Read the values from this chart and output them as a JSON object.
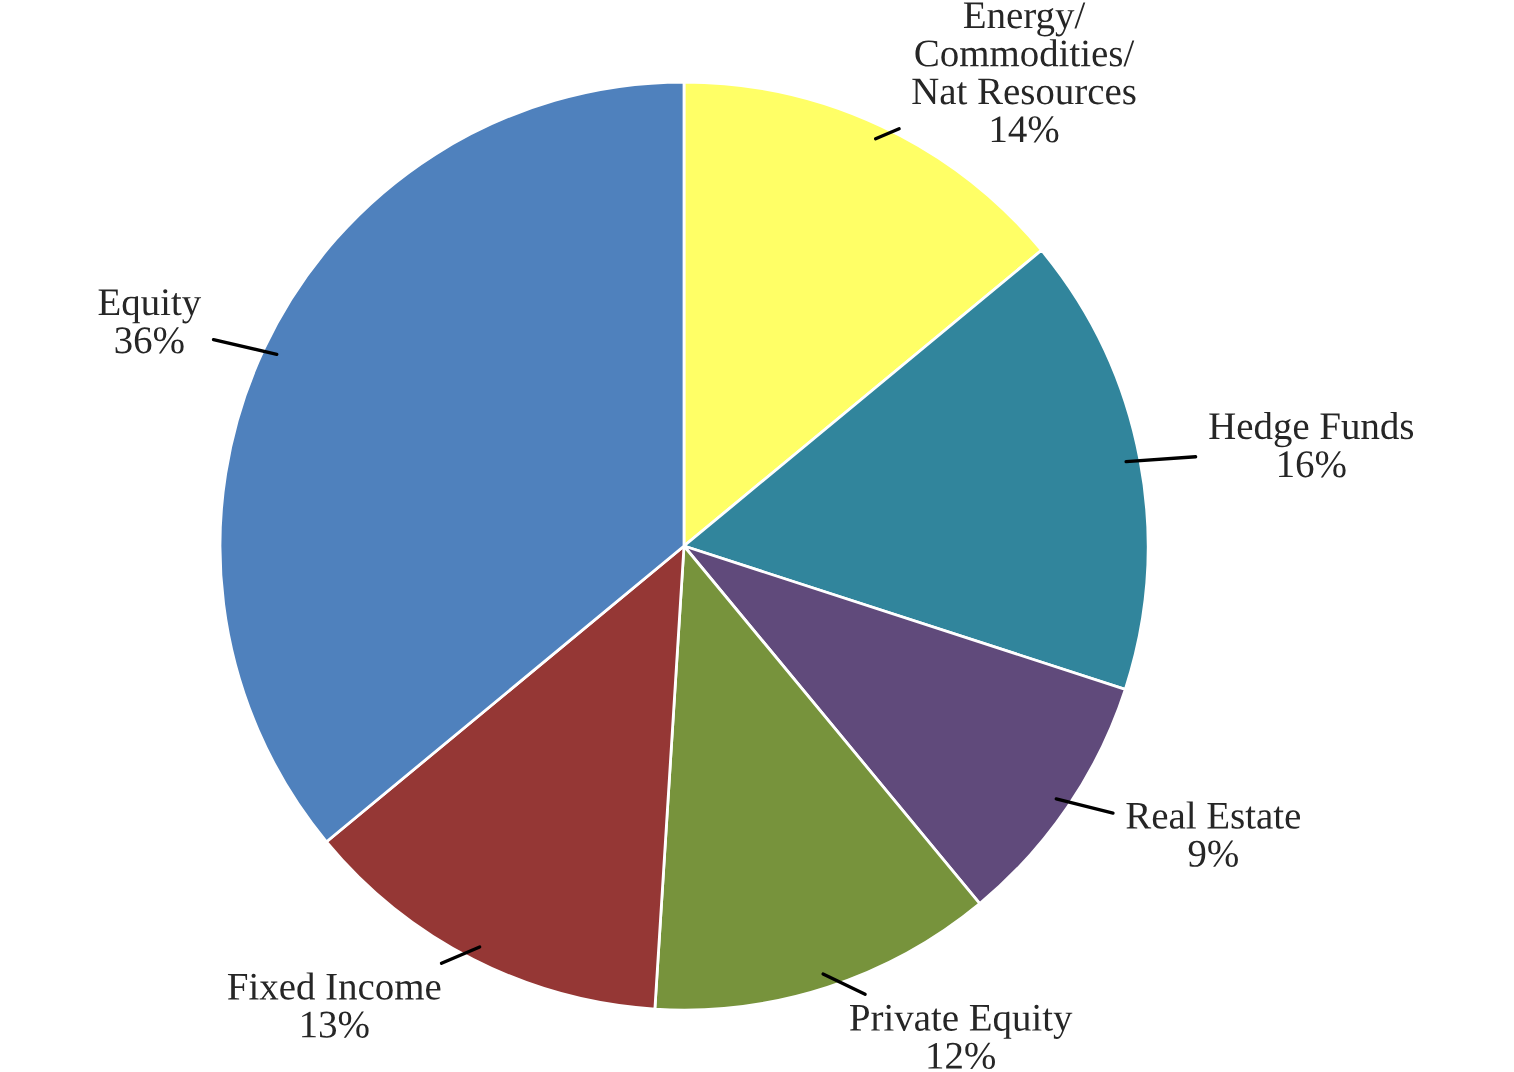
{
  "chart_data": {
    "type": "pie",
    "categories": [
      "Energy/\nCommodities/\nNat Resources",
      "Hedge Funds",
      "Real Estate",
      "Private Equity",
      "Fixed Income",
      "Equity"
    ],
    "values": [
      14,
      16,
      9,
      12,
      13,
      36
    ],
    "value_labels": [
      "14%",
      "16%",
      "9%",
      "12%",
      "13%",
      "36%"
    ],
    "colors": [
      "#ffff66",
      "#31859c",
      "#604a7b",
      "#77933c",
      "#953735",
      "#4f81bd"
    ],
    "legend": false
  }
}
